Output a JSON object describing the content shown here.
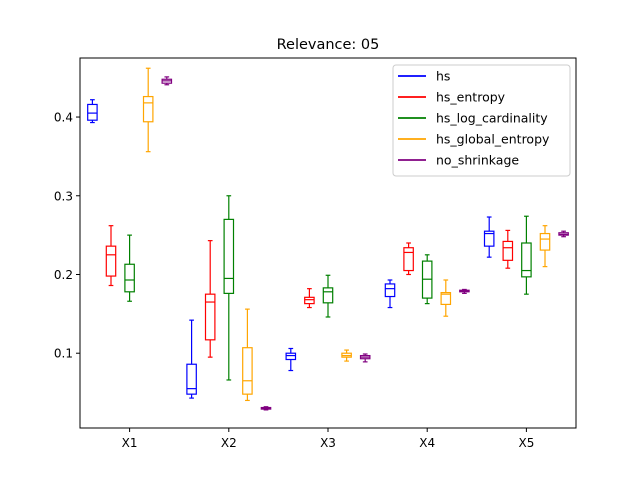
{
  "chart_data": {
    "type": "box",
    "title": "Relevance: 05",
    "xlabel": "",
    "ylabel": "",
    "categories": [
      "X1",
      "X2",
      "X3",
      "X4",
      "X5"
    ],
    "ylim": [
      0.005,
      0.475
    ],
    "yticks": [
      0.1,
      0.2,
      0.3,
      0.4
    ],
    "ytick_labels": [
      "0.1",
      "0.2",
      "0.3",
      "0.4"
    ],
    "grid": false,
    "legend_position": "upper-right",
    "series": [
      {
        "name": "hs",
        "color": "#0000ff",
        "boxes": [
          {
            "whislo": 0.393,
            "q1": 0.396,
            "med": 0.405,
            "q3": 0.416,
            "whishi": 0.422
          },
          {
            "whislo": 0.043,
            "q1": 0.048,
            "med": 0.055,
            "q3": 0.086,
            "whishi": 0.142
          },
          {
            "whislo": 0.078,
            "q1": 0.092,
            "med": 0.097,
            "q3": 0.1,
            "whishi": 0.106
          },
          {
            "whislo": 0.158,
            "q1": 0.172,
            "med": 0.182,
            "q3": 0.188,
            "whishi": 0.193
          },
          {
            "whislo": 0.222,
            "q1": 0.236,
            "med": 0.252,
            "q3": 0.255,
            "whishi": 0.273
          }
        ]
      },
      {
        "name": "hs_entropy",
        "color": "#ff0000",
        "boxes": [
          {
            "whislo": 0.186,
            "q1": 0.198,
            "med": 0.225,
            "q3": 0.236,
            "whishi": 0.262
          },
          {
            "whislo": 0.095,
            "q1": 0.117,
            "med": 0.165,
            "q3": 0.175,
            "whishi": 0.243
          },
          {
            "whislo": 0.158,
            "q1": 0.163,
            "med": 0.168,
            "q3": 0.171,
            "whishi": 0.182
          },
          {
            "whislo": 0.2,
            "q1": 0.205,
            "med": 0.228,
            "q3": 0.234,
            "whishi": 0.24
          },
          {
            "whislo": 0.208,
            "q1": 0.218,
            "med": 0.234,
            "q3": 0.242,
            "whishi": 0.256
          }
        ]
      },
      {
        "name": "hs_log_cardinality",
        "color": "#008000",
        "boxes": [
          {
            "whislo": 0.166,
            "q1": 0.178,
            "med": 0.193,
            "q3": 0.213,
            "whishi": 0.25
          },
          {
            "whislo": 0.066,
            "q1": 0.176,
            "med": 0.195,
            "q3": 0.27,
            "whishi": 0.3
          },
          {
            "whislo": 0.146,
            "q1": 0.164,
            "med": 0.178,
            "q3": 0.183,
            "whishi": 0.199
          },
          {
            "whislo": 0.163,
            "q1": 0.17,
            "med": 0.194,
            "q3": 0.217,
            "whishi": 0.225
          },
          {
            "whislo": 0.175,
            "q1": 0.197,
            "med": 0.205,
            "q3": 0.24,
            "whishi": 0.274
          }
        ]
      },
      {
        "name": "hs_global_entropy",
        "color": "#ffa500",
        "boxes": [
          {
            "whislo": 0.356,
            "q1": 0.394,
            "med": 0.418,
            "q3": 0.426,
            "whishi": 0.462
          },
          {
            "whislo": 0.04,
            "q1": 0.048,
            "med": 0.065,
            "q3": 0.107,
            "whishi": 0.156
          },
          {
            "whislo": 0.09,
            "q1": 0.095,
            "med": 0.097,
            "q3": 0.1,
            "whishi": 0.104
          },
          {
            "whislo": 0.147,
            "q1": 0.162,
            "med": 0.175,
            "q3": 0.177,
            "whishi": 0.193
          },
          {
            "whislo": 0.21,
            "q1": 0.231,
            "med": 0.245,
            "q3": 0.252,
            "whishi": 0.262
          }
        ]
      },
      {
        "name": "no_shrinkage",
        "color": "#800080",
        "boxes": [
          {
            "whislo": 0.441,
            "q1": 0.443,
            "med": 0.446,
            "q3": 0.448,
            "whishi": 0.451
          },
          {
            "whislo": 0.028,
            "q1": 0.029,
            "med": 0.03,
            "q3": 0.031,
            "whishi": 0.032
          },
          {
            "whislo": 0.089,
            "q1": 0.093,
            "med": 0.095,
            "q3": 0.097,
            "whishi": 0.099
          },
          {
            "whislo": 0.176,
            "q1": 0.178,
            "med": 0.179,
            "q3": 0.18,
            "whishi": 0.181
          },
          {
            "whislo": 0.248,
            "q1": 0.25,
            "med": 0.251,
            "q3": 0.253,
            "whishi": 0.255
          }
        ]
      }
    ]
  }
}
